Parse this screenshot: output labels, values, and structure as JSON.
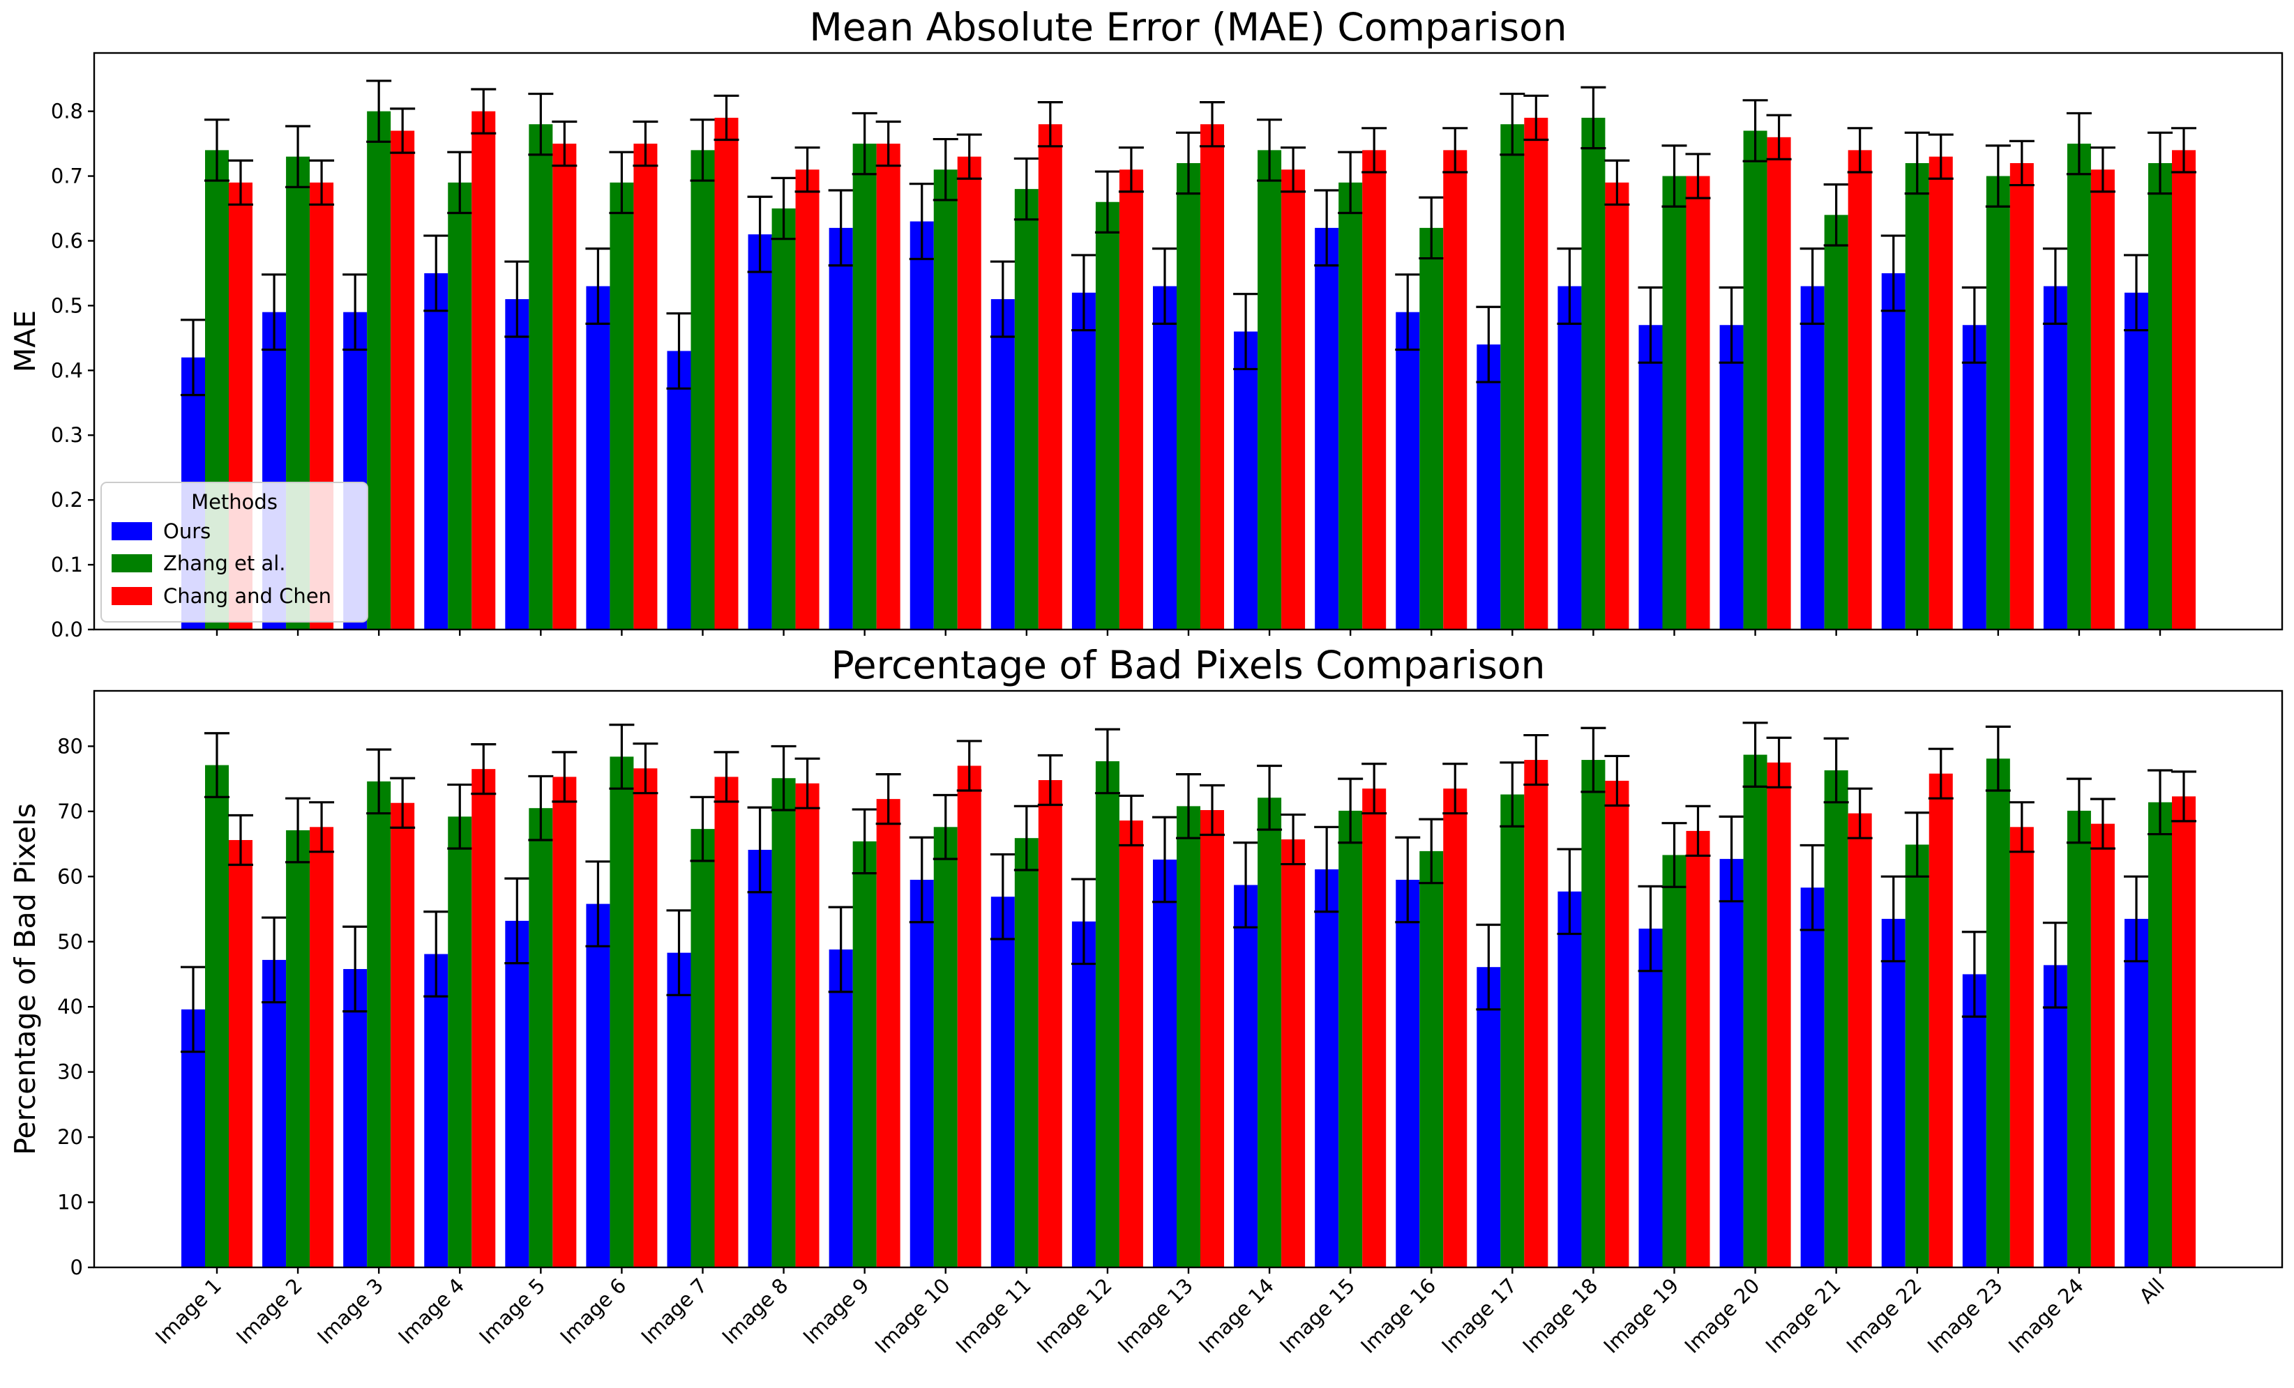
{
  "colors": {
    "ours": "#0000ff",
    "zhang": "#008000",
    "chang": "#ff0000",
    "axis": "#000000"
  },
  "legend": {
    "title": "Methods",
    "placement": "upper-left of top chart"
  },
  "chart_data": [
    {
      "type": "bar",
      "title": "Mean Absolute Error (MAE) Comparison",
      "xlabel": "",
      "ylabel": "MAE",
      "ylim": [
        0,
        0.89
      ],
      "yticks": [
        0.0,
        0.1,
        0.2,
        0.3,
        0.4,
        0.5,
        0.6,
        0.7,
        0.8
      ],
      "ytick_labels": [
        "0.0",
        "0.1",
        "0.2",
        "0.3",
        "0.4",
        "0.5",
        "0.6",
        "0.7",
        "0.8"
      ],
      "show_xtick_labels": false,
      "grid": false,
      "categories": [
        "Image 1",
        "Image 2",
        "Image 3",
        "Image 4",
        "Image 5",
        "Image 6",
        "Image 7",
        "Image 8",
        "Image 9",
        "Image 10",
        "Image 11",
        "Image 12",
        "Image 13",
        "Image 14",
        "Image 15",
        "Image 16",
        "Image 17",
        "Image 18",
        "Image 19",
        "Image 20",
        "Image 21",
        "Image 22",
        "Image 23",
        "Image 24",
        "All"
      ],
      "series": [
        {
          "name": "Ours",
          "color": "#0000ff",
          "values": [
            0.42,
            0.49,
            0.49,
            0.55,
            0.51,
            0.53,
            0.43,
            0.61,
            0.62,
            0.63,
            0.51,
            0.52,
            0.53,
            0.46,
            0.62,
            0.49,
            0.44,
            0.53,
            0.47,
            0.47,
            0.53,
            0.55,
            0.47,
            0.53,
            0.52
          ],
          "errors": [
            0.058,
            0.058,
            0.058,
            0.058,
            0.058,
            0.058,
            0.058,
            0.058,
            0.058,
            0.058,
            0.058,
            0.058,
            0.058,
            0.058,
            0.058,
            0.058,
            0.058,
            0.058,
            0.058,
            0.058,
            0.058,
            0.058,
            0.058,
            0.058,
            0.058
          ]
        },
        {
          "name": "Zhang et al.",
          "color": "#008000",
          "values": [
            0.74,
            0.73,
            0.8,
            0.69,
            0.78,
            0.69,
            0.74,
            0.65,
            0.75,
            0.71,
            0.68,
            0.66,
            0.72,
            0.74,
            0.69,
            0.62,
            0.78,
            0.79,
            0.7,
            0.77,
            0.64,
            0.72,
            0.7,
            0.75,
            0.72
          ],
          "errors": [
            0.047,
            0.047,
            0.047,
            0.047,
            0.047,
            0.047,
            0.047,
            0.047,
            0.047,
            0.047,
            0.047,
            0.047,
            0.047,
            0.047,
            0.047,
            0.047,
            0.047,
            0.047,
            0.047,
            0.047,
            0.047,
            0.047,
            0.047,
            0.047,
            0.047
          ]
        },
        {
          "name": "Chang and Chen",
          "color": "#ff0000",
          "values": [
            0.69,
            0.69,
            0.77,
            0.8,
            0.75,
            0.75,
            0.79,
            0.71,
            0.75,
            0.73,
            0.78,
            0.71,
            0.78,
            0.71,
            0.74,
            0.74,
            0.79,
            0.69,
            0.7,
            0.76,
            0.74,
            0.73,
            0.72,
            0.71,
            0.74
          ],
          "errors": [
            0.034,
            0.034,
            0.034,
            0.034,
            0.034,
            0.034,
            0.034,
            0.034,
            0.034,
            0.034,
            0.034,
            0.034,
            0.034,
            0.034,
            0.034,
            0.034,
            0.034,
            0.034,
            0.034,
            0.034,
            0.034,
            0.034,
            0.034,
            0.034,
            0.034
          ]
        }
      ]
    },
    {
      "type": "bar",
      "title": "Percentage of Bad Pixels Comparison",
      "xlabel": "",
      "ylabel": "Percentage of Bad Pixels",
      "ylim": [
        0,
        88.5
      ],
      "yticks": [
        0,
        10,
        20,
        30,
        40,
        50,
        60,
        70,
        80
      ],
      "ytick_labels": [
        "0",
        "10",
        "20",
        "30",
        "40",
        "50",
        "60",
        "70",
        "80"
      ],
      "show_xtick_labels": true,
      "grid": false,
      "categories": [
        "Image 1",
        "Image 2",
        "Image 3",
        "Image 4",
        "Image 5",
        "Image 6",
        "Image 7",
        "Image 8",
        "Image 9",
        "Image 10",
        "Image 11",
        "Image 12",
        "Image 13",
        "Image 14",
        "Image 15",
        "Image 16",
        "Image 17",
        "Image 18",
        "Image 19",
        "Image 20",
        "Image 21",
        "Image 22",
        "Image 23",
        "Image 24",
        "All"
      ],
      "series": [
        {
          "name": "Ours",
          "color": "#0000ff",
          "values": [
            39.6,
            47.2,
            45.8,
            48.1,
            53.2,
            55.8,
            48.3,
            64.1,
            48.8,
            59.5,
            56.9,
            53.1,
            62.6,
            58.7,
            61.1,
            59.5,
            46.1,
            57.7,
            52.0,
            62.7,
            58.3,
            53.5,
            45.0,
            46.4,
            53.5
          ],
          "errors": [
            6.5,
            6.5,
            6.5,
            6.5,
            6.5,
            6.5,
            6.5,
            6.5,
            6.5,
            6.5,
            6.5,
            6.5,
            6.5,
            6.5,
            6.5,
            6.5,
            6.5,
            6.5,
            6.5,
            6.5,
            6.5,
            6.5,
            6.5,
            6.5,
            6.5
          ]
        },
        {
          "name": "Zhang et al.",
          "color": "#008000",
          "values": [
            77.1,
            67.1,
            74.6,
            69.2,
            70.5,
            78.4,
            67.3,
            75.1,
            65.4,
            67.6,
            65.9,
            77.7,
            70.8,
            72.1,
            70.1,
            63.9,
            72.6,
            77.9,
            63.3,
            78.7,
            76.3,
            64.9,
            78.1,
            70.1,
            71.4
          ],
          "errors": [
            4.9,
            4.9,
            4.9,
            4.9,
            4.9,
            4.9,
            4.9,
            4.9,
            4.9,
            4.9,
            4.9,
            4.9,
            4.9,
            4.9,
            4.9,
            4.9,
            4.9,
            4.9,
            4.9,
            4.9,
            4.9,
            4.9,
            4.9,
            4.9,
            4.9
          ]
        },
        {
          "name": "Chang and Chen",
          "color": "#ff0000",
          "values": [
            65.6,
            67.6,
            71.3,
            76.5,
            75.3,
            76.6,
            75.3,
            74.3,
            71.9,
            77.0,
            74.8,
            68.6,
            70.2,
            65.7,
            73.5,
            73.5,
            77.9,
            74.7,
            67.0,
            77.5,
            69.7,
            75.8,
            67.6,
            68.1,
            72.3
          ],
          "errors": [
            3.8,
            3.8,
            3.8,
            3.8,
            3.8,
            3.8,
            3.8,
            3.8,
            3.8,
            3.8,
            3.8,
            3.8,
            3.8,
            3.8,
            3.8,
            3.8,
            3.8,
            3.8,
            3.8,
            3.8,
            3.8,
            3.8,
            3.8,
            3.8,
            3.8
          ]
        }
      ]
    }
  ]
}
